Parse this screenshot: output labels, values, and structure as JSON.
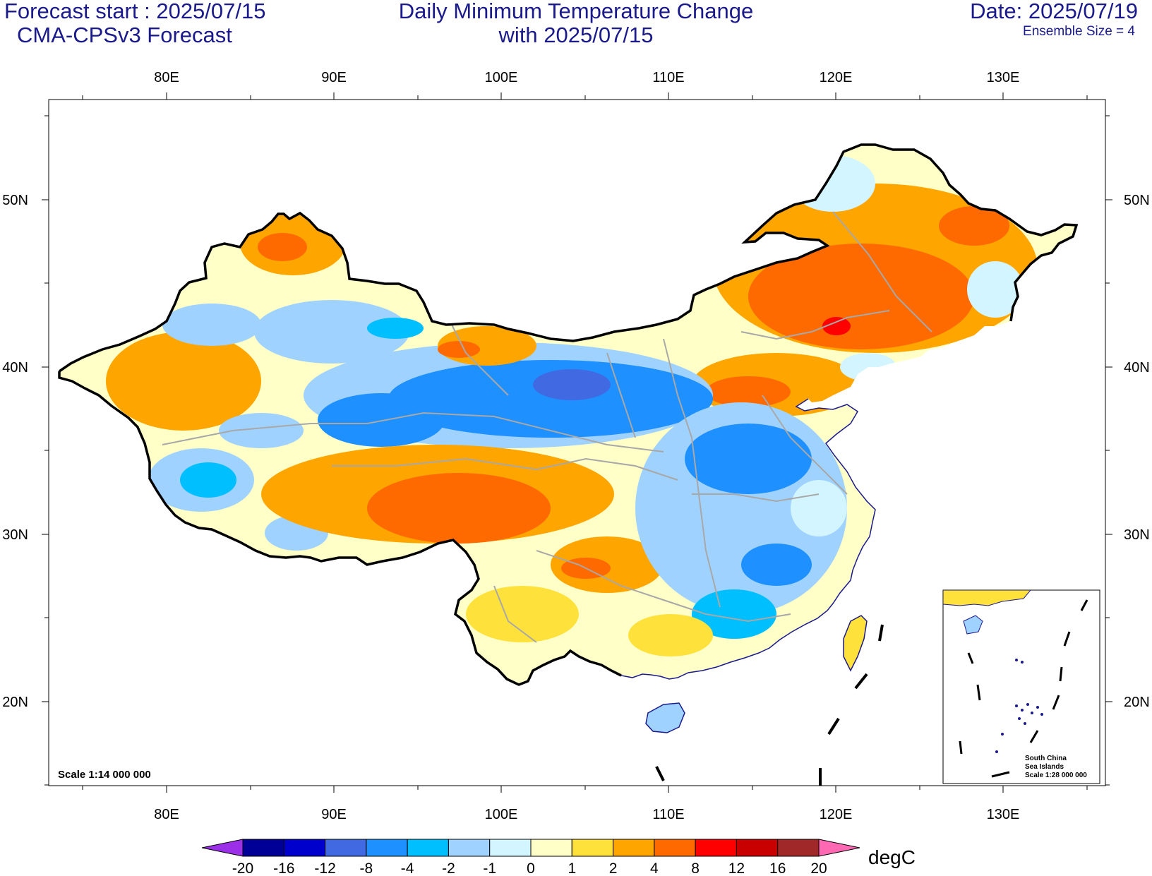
{
  "header": {
    "forecast_start": "Forecast start : 2025/07/15",
    "model": "CMA-CPSv3 Forecast",
    "title_line1": "Daily Minimum Temperature Change",
    "title_line2": "with 2025/07/15",
    "date": "Date: 2025/07/19",
    "ensemble": "Ensemble Size = 4"
  },
  "map": {
    "lon_ticks": [
      "80E",
      "90E",
      "100E",
      "110E",
      "120E",
      "130E"
    ],
    "lat_ticks": [
      "50N",
      "40N",
      "30N",
      "20N"
    ],
    "scale_text": "Scale 1:14 000 000",
    "inset": {
      "line1": "South China",
      "line2": "Sea Islands",
      "line3": "Scale 1:28 000 000"
    }
  },
  "colorbar": {
    "labels": [
      "-20",
      "-16",
      "-12",
      "-8",
      "-4",
      "-2",
      "-1",
      "0",
      "1",
      "2",
      "4",
      "8",
      "12",
      "16",
      "20"
    ],
    "colors": [
      "#9b30e8",
      "#000096",
      "#0000cd",
      "#4169e1",
      "#1e90ff",
      "#00bfff",
      "#a0d2ff",
      "#d2f5ff",
      "#ffffc8",
      "#ffe13c",
      "#ffa500",
      "#ff6a00",
      "#ff0000",
      "#c80000",
      "#a02828",
      "#ff69b4"
    ],
    "unit": "degC"
  }
}
